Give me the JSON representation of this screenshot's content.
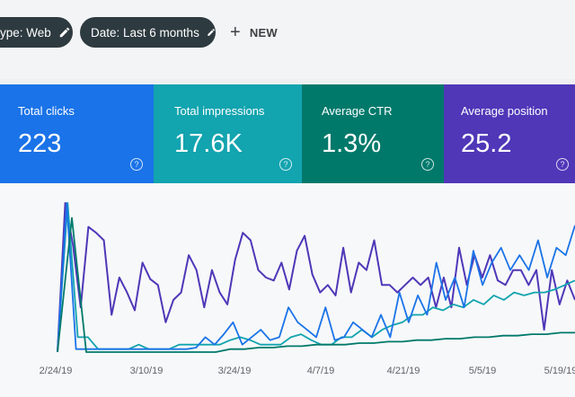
{
  "filters": {
    "type_chip": "ype: Web",
    "date_chip": "Date: Last 6 months",
    "new_label": "NEW"
  },
  "cards": {
    "clicks": {
      "label": "Total clicks",
      "value": "223",
      "color": "#1a73e8"
    },
    "impressions": {
      "label": "Total impressions",
      "value": "17.6K",
      "color": "#12a4af"
    },
    "ctr": {
      "label": "Average CTR",
      "value": "1.3%",
      "color": "#00796b"
    },
    "position": {
      "label": "Average position",
      "value": "25.2",
      "color": "#4f37b8"
    },
    "help_glyph": "?"
  },
  "chart_data": {
    "type": "line",
    "x_tick_labels": [
      "2/24/19",
      "3/10/19",
      "3/24/19",
      "4/7/19",
      "4/21/19",
      "5/5/19",
      "5/19/19"
    ],
    "series": [
      {
        "color": "#4f37b8",
        "values": [
          0,
          100,
          72,
          30,
          84,
          80,
          75,
          25,
          50,
          40,
          28,
          60,
          49,
          45,
          20,
          35,
          40,
          65,
          55,
          30,
          55,
          40,
          32,
          62,
          80,
          75,
          55,
          50,
          48,
          60,
          42,
          68,
          78,
          52,
          40,
          45,
          38,
          70,
          40,
          60,
          55,
          75,
          45,
          45,
          40,
          45,
          50,
          45,
          50,
          30,
          50,
          30,
          70,
          45,
          65,
          50,
          65,
          48,
          45,
          55,
          55,
          45,
          55,
          15,
          55,
          32,
          48,
          35
        ]
      },
      {
        "color": "#12a4af",
        "values": [
          0,
          100,
          10,
          10,
          2,
          2,
          2,
          2,
          5,
          2,
          2,
          2,
          5,
          5,
          5,
          5,
          5,
          8,
          10,
          8,
          5,
          5,
          5,
          10,
          12,
          8,
          5,
          5,
          10,
          10,
          15,
          10,
          15,
          18,
          20,
          25,
          25,
          30,
          28,
          32,
          30,
          35,
          32,
          38,
          35,
          40,
          38,
          40,
          40,
          42,
          45,
          48
        ]
      },
      {
        "color": "#1a73e8",
        "values": [
          0,
          100,
          2,
          2,
          2,
          2,
          2,
          2,
          2,
          2,
          2,
          2,
          2,
          2,
          2,
          3,
          10,
          5,
          12,
          20,
          5,
          10,
          15,
          8,
          10,
          30,
          20,
          15,
          10,
          30,
          8,
          10,
          20,
          15,
          10,
          25,
          10,
          40,
          20,
          38,
          25,
          60,
          35,
          50,
          30,
          68,
          45,
          60,
          70,
          55,
          65,
          55,
          75,
          50,
          70,
          65,
          85
        ]
      },
      {
        "color": "#00796b",
        "values": [
          0,
          90,
          0,
          0,
          0,
          0,
          0,
          0,
          0,
          0,
          0,
          0,
          2,
          2,
          3,
          3,
          4,
          4,
          5,
          5,
          5,
          6,
          6,
          7,
          7,
          8,
          8,
          9,
          9,
          10,
          10,
          11,
          11,
          12,
          12,
          13,
          13
        ]
      }
    ]
  }
}
